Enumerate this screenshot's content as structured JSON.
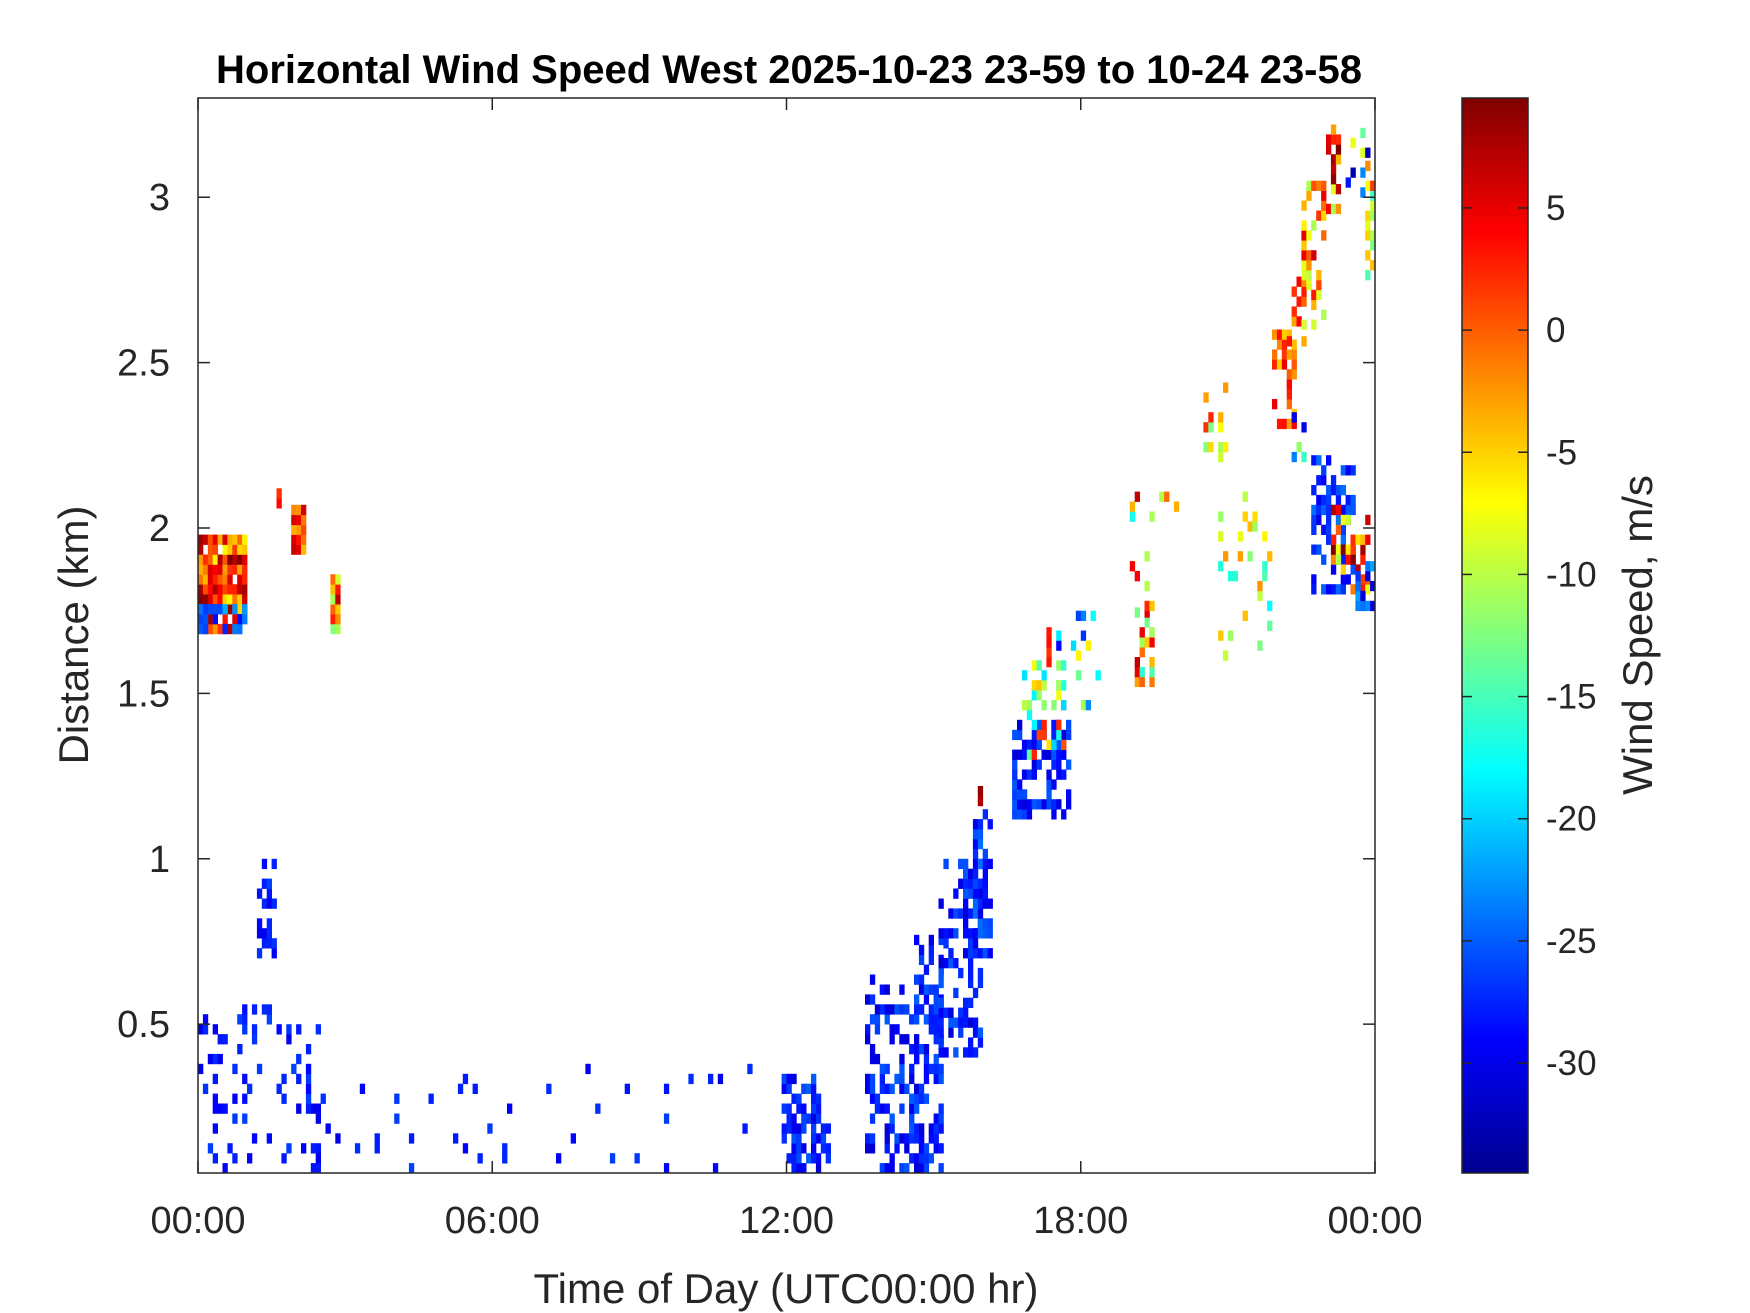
{
  "chart_data": {
    "type": "heatmap",
    "title": "Horizontal Wind Speed West 2025-10-23 23-59 to 10-24 23-58",
    "xlabel": "Time of Day (UTC00:00 hr)",
    "ylabel": "Distance (km)",
    "x_unit": "hours",
    "xlim": [
      0,
      24
    ],
    "ylim": [
      0.05,
      3.3
    ],
    "x_ticks": [
      0,
      6,
      12,
      18,
      24
    ],
    "x_tick_labels": [
      "00:00",
      "06:00",
      "12:00",
      "18:00",
      "00:00"
    ],
    "y_ticks": [
      0.5,
      1,
      1.5,
      2,
      2.5,
      3
    ],
    "y_tick_labels": [
      "0.5",
      "1",
      "1.5",
      "2",
      "2.5",
      "3"
    ],
    "colorbar": {
      "label": "Wind Speed, m/s",
      "colormap": "jet",
      "range": [
        -34.5,
        9.5
      ],
      "ticks": [
        5,
        0,
        -5,
        -10,
        -15,
        -20,
        -25,
        -30
      ],
      "tick_labels": [
        "5",
        "0",
        "-5",
        "-10",
        "-15",
        "-20",
        "-25",
        "-30"
      ]
    },
    "cell": {
      "dx_hours": 0.1,
      "dy_km": 0.03
    },
    "clusters": [
      {
        "x": [
          0.0,
          1.0
        ],
        "y": [
          1.68,
          1.98
        ],
        "value": 2,
        "spread": 9,
        "density": 0.95
      },
      {
        "x": [
          0.0,
          1.0
        ],
        "y": [
          1.68,
          1.76
        ],
        "value": -25,
        "spread": 4,
        "density": 0.7
      },
      {
        "x": [
          1.9,
          2.2
        ],
        "y": [
          1.92,
          2.06
        ],
        "value": 1,
        "spread": 6,
        "density": 0.9
      },
      {
        "x": [
          2.7,
          2.9
        ],
        "y": [
          1.68,
          1.84
        ],
        "value": -3,
        "spread": 10,
        "density": 0.9
      },
      {
        "x": [
          1.6,
          1.7
        ],
        "y": [
          2.06,
          2.12
        ],
        "value": 2,
        "spread": 2,
        "density": 0.9
      },
      {
        "x": [
          0.0,
          2.5
        ],
        "y": [
          0.05,
          0.55
        ],
        "value": -28,
        "spread": 2,
        "density": 0.15
      },
      {
        "x": [
          1.2,
          1.6
        ],
        "y": [
          0.7,
          0.98
        ],
        "value": -28,
        "spread": 2,
        "density": 0.4
      },
      {
        "x": [
          2.5,
          6.0
        ],
        "y": [
          0.05,
          0.35
        ],
        "value": -28,
        "spread": 2,
        "density": 0.05
      },
      {
        "x": [
          6.0,
          12.0
        ],
        "y": [
          0.05,
          0.4
        ],
        "value": -28,
        "spread": 2,
        "density": 0.02
      },
      {
        "x": [
          11.9,
          12.9
        ],
        "y": [
          0.05,
          0.35
        ],
        "value": -28,
        "spread": 3,
        "density": 0.55
      },
      {
        "x": [
          13.6,
          14.8
        ],
        "y": [
          0.05,
          0.65
        ],
        "value": -28,
        "spread": 3,
        "density": 0.4
      },
      {
        "x": [
          14.6,
          15.2
        ],
        "y": [
          0.05,
          0.75
        ],
        "value": -28,
        "spread": 3,
        "density": 0.5
      },
      {
        "x": [
          15.1,
          16.0
        ],
        "y": [
          0.4,
          1.0
        ],
        "value": -28,
        "spread": 3,
        "density": 0.5
      },
      {
        "x": [
          15.8,
          16.2
        ],
        "y": [
          0.7,
          1.15
        ],
        "value": -27,
        "spread": 3,
        "density": 0.6
      },
      {
        "x": [
          15.9,
          16.0
        ],
        "y": [
          1.16,
          1.22
        ],
        "value": 8,
        "spread": 1,
        "density": 1.0
      },
      {
        "x": [
          16.6,
          17.8
        ],
        "y": [
          1.12,
          1.42
        ],
        "value": -28,
        "spread": 3,
        "density": 0.45
      },
      {
        "x": [
          16.8,
          17.7
        ],
        "y": [
          1.3,
          1.6
        ],
        "value": -8,
        "spread": 12,
        "density": 0.4
      },
      {
        "x": [
          17.3,
          17.4
        ],
        "y": [
          1.58,
          1.68
        ],
        "value": 2,
        "spread": 3,
        "density": 0.9
      },
      {
        "x": [
          17.5,
          18.4
        ],
        "y": [
          1.45,
          1.85
        ],
        "value": -18,
        "spread": 12,
        "density": 0.12
      },
      {
        "x": [
          19.1,
          19.5
        ],
        "y": [
          1.52,
          1.75
        ],
        "value": -5,
        "spread": 12,
        "density": 0.5
      },
      {
        "x": [
          19.0,
          20.0
        ],
        "y": [
          1.75,
          2.12
        ],
        "value": -5,
        "spread": 14,
        "density": 0.12
      },
      {
        "x": [
          20.8,
          22.0
        ],
        "y": [
          1.6,
          2.1
        ],
        "value": -10,
        "spread": 8,
        "density": 0.12
      },
      {
        "x": [
          20.5,
          21.0
        ],
        "y": [
          2.2,
          2.45
        ],
        "value": -5,
        "spread": 8,
        "density": 0.2
      },
      {
        "x": [
          21.9,
          22.4
        ],
        "y": [
          2.3,
          2.6
        ],
        "value": 1,
        "spread": 6,
        "density": 0.55
      },
      {
        "x": [
          22.2,
          22.6
        ],
        "y": [
          2.55,
          2.75
        ],
        "value": 0,
        "spread": 5,
        "density": 0.5
      },
      {
        "x": [
          22.5,
          23.0
        ],
        "y": [
          2.6,
          3.05
        ],
        "value": -3,
        "spread": 10,
        "density": 0.35
      },
      {
        "x": [
          23.0,
          23.3
        ],
        "y": [
          2.95,
          3.22
        ],
        "value": -2,
        "spread": 12,
        "density": 0.55
      },
      {
        "x": [
          23.4,
          23.9
        ],
        "y": [
          3.0,
          3.2
        ],
        "value": -20,
        "spread": 15,
        "density": 0.2
      },
      {
        "x": [
          23.8,
          24.0
        ],
        "y": [
          2.75,
          3.1
        ],
        "value": -5,
        "spread": 10,
        "density": 0.5
      },
      {
        "x": [
          22.7,
          23.6
        ],
        "y": [
          1.8,
          2.2
        ],
        "value": -27,
        "spread": 3,
        "density": 0.45
      },
      {
        "x": [
          23.1,
          23.9
        ],
        "y": [
          1.8,
          2.05
        ],
        "value": 1,
        "spread": 12,
        "density": 0.5
      },
      {
        "x": [
          23.6,
          24.0
        ],
        "y": [
          1.75,
          1.9
        ],
        "value": -26,
        "spread": 5,
        "density": 0.6
      },
      {
        "x": [
          22.3,
          22.6
        ],
        "y": [
          2.2,
          2.35
        ],
        "value": -20,
        "spread": 10,
        "density": 0.3
      }
    ]
  }
}
